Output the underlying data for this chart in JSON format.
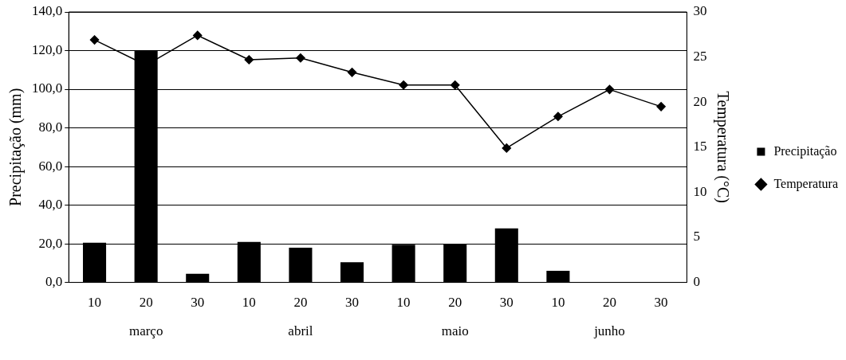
{
  "chart_data": {
    "type": "bar",
    "categories": [
      "10",
      "20",
      "30",
      "10",
      "20",
      "30",
      "10",
      "20",
      "30",
      "10",
      "20",
      "30"
    ],
    "series": [
      {
        "name": "Precipitação",
        "color": "#000000",
        "values": [
          20.5,
          120,
          4.5,
          21,
          18,
          10.5,
          19.5,
          20,
          28,
          6,
          0,
          0
        ]
      },
      {
        "name": "Temperatura",
        "type": "line",
        "axis": "y2",
        "color": "#000000",
        "values": [
          26.9,
          24.1,
          27.4,
          24.7,
          24.9,
          23.3,
          21.9,
          21.9,
          14.9,
          18.4,
          21.4,
          19.5
        ]
      }
    ],
    "ylabel": "Precipitação (mm)",
    "y2label": "Temperatura (°C)",
    "ylim": [
      0,
      140
    ],
    "yticks": [
      {
        "value": 0,
        "label": "0,0"
      },
      {
        "value": 20,
        "label": "20,0"
      },
      {
        "value": 40,
        "label": "40,0"
      },
      {
        "value": 60,
        "label": "60,0"
      },
      {
        "value": 80,
        "label": "80,0"
      },
      {
        "value": 100,
        "label": "100,0"
      },
      {
        "value": 120,
        "label": "120,0"
      },
      {
        "value": 140,
        "label": "140,0"
      }
    ],
    "y2lim": [
      0,
      30
    ],
    "y2ticks": [
      0,
      5,
      10,
      15,
      20,
      25,
      30
    ],
    "annotations": [
      "março",
      "abril",
      "maio",
      "junho"
    ],
    "grid": "y",
    "legend": "right",
    "marker": "diamond",
    "line_style": "solid"
  }
}
